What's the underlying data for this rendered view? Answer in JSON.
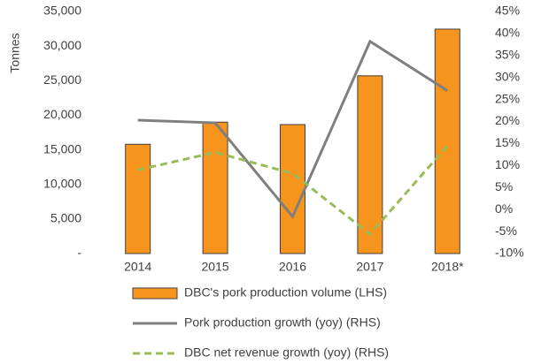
{
  "chart_data": {
    "type": "bar",
    "y_label": "Tonnes",
    "categories": [
      "2014",
      "2015",
      "2016",
      "2017",
      "2018*"
    ],
    "series": [
      {
        "name": "DBC's pork production volume (LHS)",
        "type": "bar",
        "color": "#f7941d",
        "values": [
          15800,
          19000,
          18650,
          25700,
          32450
        ]
      },
      {
        "name": "Pork production growth (yoy) (RHS)",
        "type": "line",
        "axis": "y2",
        "color": "#7f7f7f",
        "values": [
          20.3,
          19.7,
          -1.6,
          38.2,
          27
        ]
      },
      {
        "name": "DBC net revenue growth (yoy) (RHS)",
        "type": "line",
        "axis": "y2",
        "dashed": true,
        "color": "#9bbb59",
        "values": [
          9,
          13,
          8.2,
          -5.6,
          14.5
        ]
      }
    ],
    "ylim": [
      0,
      35000
    ],
    "yticks": [
      {
        "value": 0,
        "label": "-"
      },
      {
        "value": 5000,
        "label": "5,000"
      },
      {
        "value": 10000,
        "label": "10,000"
      },
      {
        "value": 15000,
        "label": "15,000"
      },
      {
        "value": 20000,
        "label": "20,000"
      },
      {
        "value": 25000,
        "label": "25,000"
      },
      {
        "value": 30000,
        "label": "30,000"
      },
      {
        "value": 35000,
        "label": "35,000"
      }
    ],
    "y2lim": [
      -10,
      45
    ],
    "y2ticks": [
      {
        "value": -10,
        "label": "-10%"
      },
      {
        "value": -5,
        "label": "-5%"
      },
      {
        "value": 0,
        "label": "0%"
      },
      {
        "value": 5,
        "label": "5%"
      },
      {
        "value": 10,
        "label": "10%"
      },
      {
        "value": 15,
        "label": "15%"
      },
      {
        "value": 20,
        "label": "20%"
      },
      {
        "value": 25,
        "label": "25%"
      },
      {
        "value": 30,
        "label": "30%"
      },
      {
        "value": 35,
        "label": "35%"
      },
      {
        "value": 40,
        "label": "40%"
      },
      {
        "value": 45,
        "label": "45%"
      }
    ],
    "legend": "bottom"
  }
}
